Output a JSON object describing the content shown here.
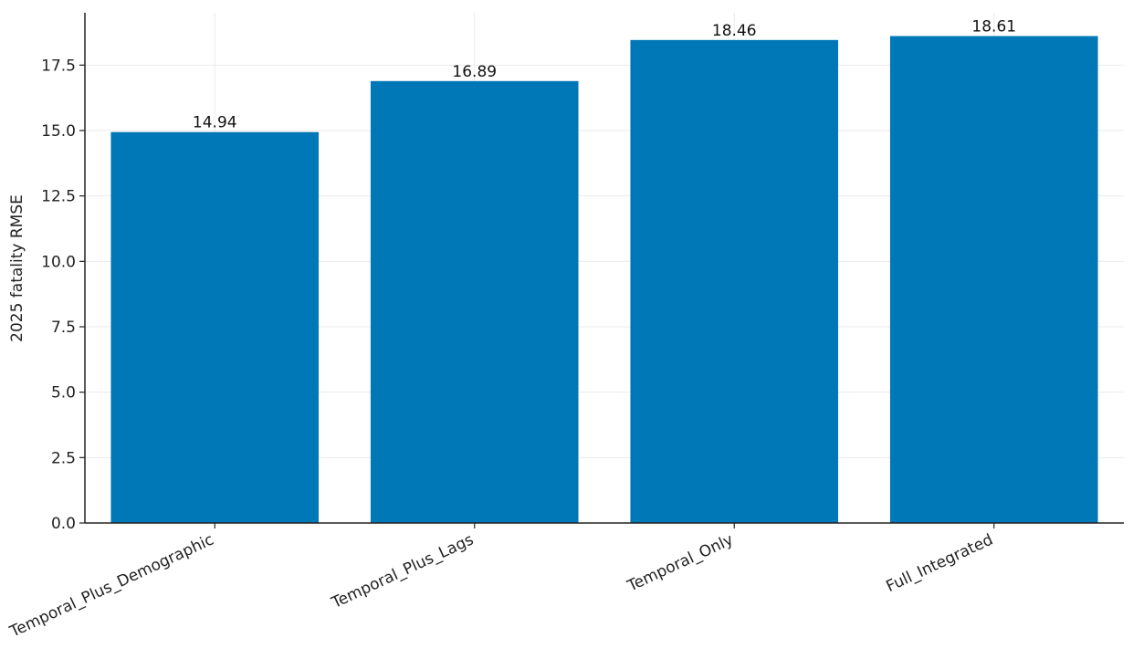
{
  "chart_data": {
    "type": "bar",
    "categories": [
      "Temporal_Plus_Demographic",
      "Temporal_Plus_Lags",
      "Temporal_Only",
      "Full_Integrated"
    ],
    "values": [
      14.94,
      16.89,
      18.46,
      18.61
    ],
    "data_labels": [
      "14.94",
      "16.89",
      "18.46",
      "18.61"
    ],
    "ylabel": "2025 fatality RMSE",
    "ylim": [
      0,
      19.5
    ],
    "yticks": [
      0,
      2.5,
      5,
      7.5,
      10,
      12.5,
      15,
      17.5
    ],
    "ytick_labels": [
      "0.0",
      "2.5",
      "5.0",
      "7.5",
      "10.0",
      "12.5",
      "15.0",
      "17.5"
    ],
    "grid": true,
    "bar_color": "#0077b6"
  }
}
